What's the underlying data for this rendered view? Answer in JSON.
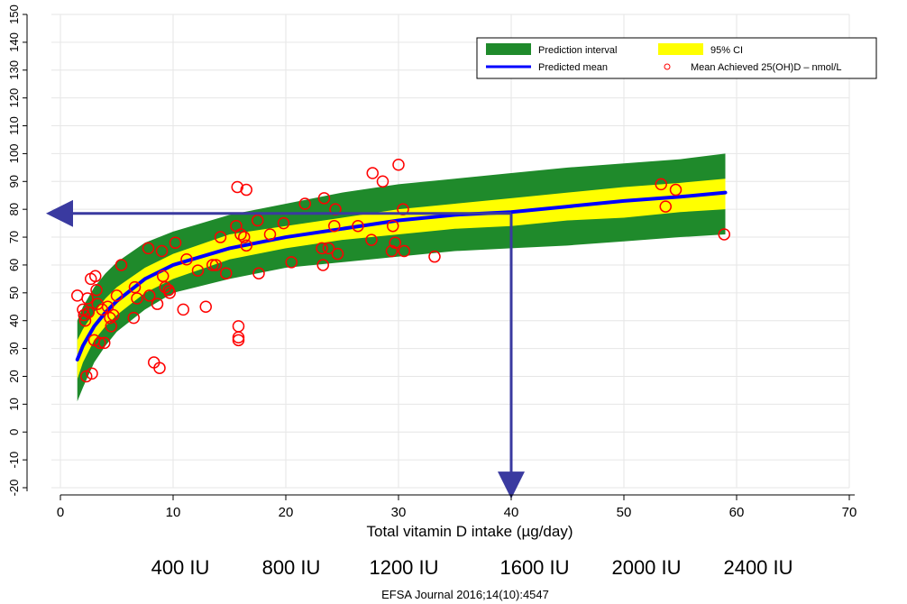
{
  "chart_data": {
    "type": "line",
    "xlabel": "Total vitamin D intake (µg/day)",
    "xlim": [
      0,
      70
    ],
    "ylim": [
      -20,
      150
    ],
    "x_ticks": [
      0,
      10,
      20,
      30,
      40,
      50,
      60,
      70
    ],
    "y_ticks": [
      -20,
      -10,
      0,
      10,
      20,
      30,
      40,
      50,
      60,
      70,
      80,
      90,
      100,
      110,
      120,
      130,
      140,
      150
    ],
    "grid": true,
    "legend_position": "top-right",
    "legend": [
      {
        "label": "Prediction interval",
        "kind": "band",
        "color": "#1f8a2b"
      },
      {
        "label": "95% CI",
        "kind": "band",
        "color": "#ffff00"
      },
      {
        "label": "Predicted mean",
        "kind": "line",
        "color": "#0000ff"
      },
      {
        "label": "Mean Achieved 25(OH)D – nmol/L",
        "kind": "marker",
        "color": "#ff0000"
      }
    ],
    "series": [
      {
        "name": "Predicted mean",
        "x": [
          1.5,
          2,
          3,
          4,
          5,
          7.5,
          10,
          15,
          20,
          25,
          30,
          35,
          40,
          45,
          50,
          55,
          59
        ],
        "y": [
          26,
          31,
          38,
          43,
          47,
          55,
          60,
          66,
          70,
          73,
          76,
          78,
          79,
          81,
          83,
          84.5,
          86
        ]
      },
      {
        "name": "95% CI",
        "x": [
          1.5,
          2,
          3,
          4,
          5,
          7.5,
          10,
          15,
          20,
          25,
          30,
          35,
          40,
          45,
          50,
          55,
          59
        ],
        "lower": [
          19,
          25,
          33,
          38,
          42,
          50,
          55,
          62,
          66,
          69,
          71,
          73,
          74,
          76,
          77,
          79,
          80
        ],
        "upper": [
          33,
          37,
          43,
          48,
          52,
          59,
          64,
          71,
          74,
          77,
          80,
          82,
          84,
          86,
          88,
          89.5,
          91
        ]
      },
      {
        "name": "Prediction interval",
        "x": [
          1.5,
          2,
          3,
          4,
          5,
          7.5,
          10,
          15,
          20,
          25,
          30,
          35,
          40,
          45,
          50,
          55,
          59
        ],
        "lower": [
          11,
          16,
          25,
          31,
          36,
          44,
          50,
          55,
          59,
          61,
          63,
          65,
          66,
          67,
          68.5,
          70,
          71
        ],
        "upper": [
          40,
          45,
          52,
          57,
          61,
          68,
          72,
          78,
          82,
          86,
          89,
          91,
          93,
          95,
          96.5,
          98,
          100
        ]
      },
      {
        "name": "Mean Achieved 25(OH)D – nmol/L",
        "points": [
          [
            1.5,
            49
          ],
          [
            2,
            44
          ],
          [
            2.1,
            42
          ],
          [
            2.2,
            40
          ],
          [
            2.3,
            20
          ],
          [
            2.4,
            48
          ],
          [
            2.5,
            43
          ],
          [
            2.7,
            55
          ],
          [
            2.8,
            21
          ],
          [
            3,
            33
          ],
          [
            3.1,
            56
          ],
          [
            3.2,
            51
          ],
          [
            3.3,
            46
          ],
          [
            3.5,
            32
          ],
          [
            3.7,
            44
          ],
          [
            3.9,
            32
          ],
          [
            4.2,
            45
          ],
          [
            4.4,
            41
          ],
          [
            4.5,
            38
          ],
          [
            4.7,
            42
          ],
          [
            5,
            49
          ],
          [
            5.4,
            60
          ],
          [
            6.5,
            41
          ],
          [
            6.6,
            52
          ],
          [
            6.8,
            48
          ],
          [
            7.8,
            66
          ],
          [
            7.9,
            49
          ],
          [
            8.3,
            25
          ],
          [
            8.6,
            46
          ],
          [
            8.8,
            23
          ],
          [
            9.0,
            65
          ],
          [
            9.1,
            56
          ],
          [
            9.3,
            52
          ],
          [
            9.6,
            51
          ],
          [
            9.7,
            50
          ],
          [
            10.2,
            68
          ],
          [
            10.9,
            44
          ],
          [
            11.2,
            62
          ],
          [
            12.2,
            58
          ],
          [
            12.9,
            45
          ],
          [
            13.5,
            60
          ],
          [
            13.8,
            60
          ],
          [
            14.2,
            70
          ],
          [
            14.7,
            57
          ],
          [
            15.6,
            74
          ],
          [
            15.7,
            88
          ],
          [
            15.8,
            38
          ],
          [
            15.8,
            34
          ],
          [
            15.8,
            33
          ],
          [
            16.0,
            71
          ],
          [
            16.3,
            70
          ],
          [
            16.5,
            87
          ],
          [
            16.5,
            67
          ],
          [
            17.5,
            76
          ],
          [
            17.6,
            57
          ],
          [
            18.6,
            71
          ],
          [
            19.8,
            75
          ],
          [
            20.5,
            61
          ],
          [
            21.7,
            82
          ],
          [
            23.2,
            66
          ],
          [
            23.3,
            60
          ],
          [
            23.4,
            84
          ],
          [
            23.8,
            66
          ],
          [
            24.3,
            74
          ],
          [
            24.4,
            80
          ],
          [
            24.6,
            64
          ],
          [
            26.4,
            74
          ],
          [
            27.6,
            69
          ],
          [
            27.7,
            93
          ],
          [
            28.6,
            90
          ],
          [
            29.4,
            65
          ],
          [
            29.5,
            74
          ],
          [
            29.7,
            68
          ],
          [
            30.0,
            96
          ],
          [
            30.4,
            80
          ],
          [
            30.5,
            65
          ],
          [
            33.2,
            63
          ],
          [
            53.3,
            89
          ],
          [
            53.7,
            81
          ],
          [
            54.6,
            87
          ],
          [
            58.9,
            71
          ]
        ]
      }
    ],
    "annotations": {
      "guide_x": 40,
      "guide_y": 78.5,
      "arrow_color": "#3a3aa0"
    }
  },
  "iu_labels": [
    "400 IU",
    "800 IU",
    "1200 IU",
    "1600 IU",
    "2000 IU",
    "2400 IU"
  ],
  "citation": "EFSA Journal 2016;14(10):4547"
}
